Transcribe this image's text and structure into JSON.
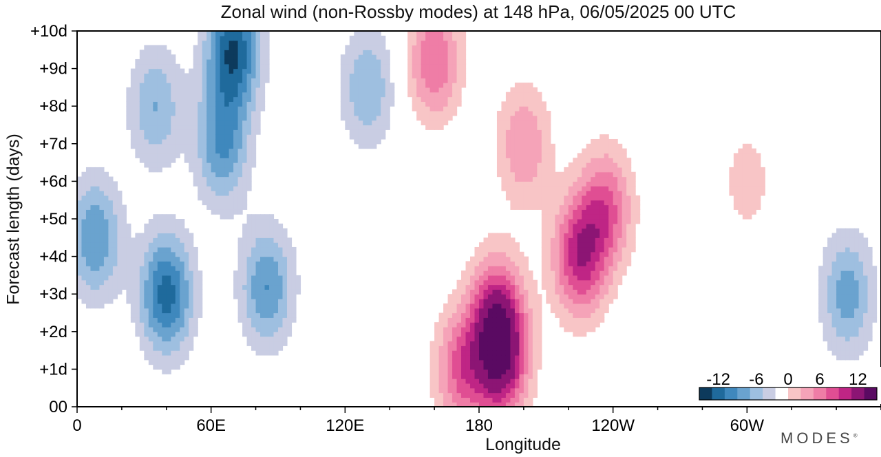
{
  "chart_data": {
    "type": "heatmap",
    "title": "Zonal wind (non-Rossby modes) at 148 hPa,  06/05/2025  00 UTC",
    "xlabel": "Longitude",
    "ylabel": "Forecast length (days)",
    "x_ticks": [
      "0",
      "60E",
      "120E",
      "180",
      "120W",
      "60W"
    ],
    "x_tick_values": [
      0,
      60,
      120,
      180,
      240,
      300
    ],
    "xlim": [
      0,
      360
    ],
    "y_ticks": [
      "00",
      "+1d",
      "+2d",
      "+3d",
      "+4d",
      "+5d",
      "+6d",
      "+7d",
      "+8d",
      "+9d",
      "+10d"
    ],
    "y_tick_values": [
      0,
      1,
      2,
      3,
      4,
      5,
      6,
      7,
      8,
      9,
      10
    ],
    "ylim": [
      0,
      10
    ],
    "colorbar": {
      "tick_labels": [
        "-12",
        "-6",
        "0",
        "6",
        "12"
      ],
      "tick_values": [
        -12,
        -6,
        0,
        6,
        12
      ],
      "levels": [
        -15,
        -12,
        -10,
        -8,
        -6,
        -4,
        -2,
        2,
        4,
        6,
        8,
        10,
        12,
        15
      ],
      "colors": [
        "#0d3a5c",
        "#1f6a9c",
        "#3f88bd",
        "#6aa3cf",
        "#9ebfe0",
        "#c9cde3",
        "#ffffff",
        "#f8c5c6",
        "#f5a3b8",
        "#ef7da6",
        "#e04e93",
        "#bf2585",
        "#8c1574",
        "#5a0a62"
      ]
    },
    "features": [
      {
        "lon": 8,
        "day": 4.5,
        "u": -8
      },
      {
        "lon": 35,
        "day": 8.0,
        "u": -6
      },
      {
        "lon": 40,
        "day": 3.0,
        "u": -11
      },
      {
        "lon": 65,
        "day": 7.0,
        "u": -8
      },
      {
        "lon": 70,
        "day": 9.5,
        "u": -12
      },
      {
        "lon": 85,
        "day": 3.2,
        "u": -8
      },
      {
        "lon": 130,
        "day": 8.5,
        "u": -6
      },
      {
        "lon": 160,
        "day": 9.2,
        "u": 8
      },
      {
        "lon": 172,
        "day": 1.0,
        "u": 8
      },
      {
        "lon": 188,
        "day": 2.5,
        "u": 10
      },
      {
        "lon": 190,
        "day": 1.2,
        "u": 12
      },
      {
        "lon": 200,
        "day": 7.0,
        "u": 6
      },
      {
        "lon": 225,
        "day": 4.0,
        "u": 11
      },
      {
        "lon": 237,
        "day": 5.3,
        "u": 8
      },
      {
        "lon": 300,
        "day": 6.0,
        "u": 3
      },
      {
        "lon": 345,
        "day": 3.0,
        "u": -7
      }
    ]
  },
  "brand": "MODES",
  "brand_mark": "®"
}
